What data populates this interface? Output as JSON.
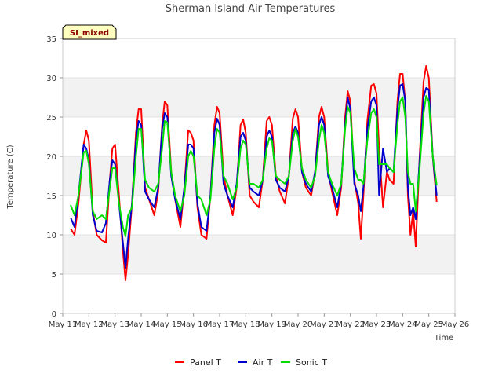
{
  "chart_data": {
    "type": "line",
    "title": "Sherman Island Air Temperatures",
    "xlabel": "Time",
    "ylabel": "Temperature (C)",
    "badge": "SI_mixed",
    "ylim": [
      0,
      35
    ],
    "yticks": [
      0,
      5,
      10,
      15,
      20,
      25,
      30,
      35
    ],
    "xlim": [
      11,
      26
    ],
    "xticks": [
      {
        "v": 11,
        "label": "May 11"
      },
      {
        "v": 12,
        "label": "May 12"
      },
      {
        "v": 13,
        "label": "May 13"
      },
      {
        "v": 14,
        "label": "May 14"
      },
      {
        "v": 15,
        "label": "May 15"
      },
      {
        "v": 16,
        "label": "May 16"
      },
      {
        "v": 17,
        "label": "May 17"
      },
      {
        "v": 18,
        "label": "May 18"
      },
      {
        "v": 19,
        "label": "May 19"
      },
      {
        "v": 20,
        "label": "May 20"
      },
      {
        "v": 21,
        "label": "May 21"
      },
      {
        "v": 22,
        "label": "May 22"
      },
      {
        "v": 23,
        "label": "May 23"
      },
      {
        "v": 24,
        "label": "May 24"
      },
      {
        "v": 25,
        "label": "May 25"
      },
      {
        "v": 26,
        "label": "May 26"
      }
    ],
    "grid": true,
    "legend_position": "bottom",
    "series": [
      {
        "name": "Panel T",
        "color": "#ff0000",
        "x": [
          11.3,
          11.45,
          11.6,
          11.8,
          11.9,
          12.0,
          12.15,
          12.3,
          12.5,
          12.65,
          12.8,
          12.9,
          13.0,
          13.15,
          13.3,
          13.4,
          13.5,
          13.65,
          13.8,
          13.9,
          14.0,
          14.15,
          14.3,
          14.5,
          14.65,
          14.8,
          14.9,
          15.0,
          15.15,
          15.3,
          15.5,
          15.65,
          15.8,
          15.9,
          16.0,
          16.15,
          16.3,
          16.5,
          16.65,
          16.8,
          16.9,
          17.0,
          17.15,
          17.3,
          17.5,
          17.65,
          17.8,
          17.9,
          18.0,
          18.15,
          18.3,
          18.5,
          18.65,
          18.8,
          18.9,
          19.0,
          19.15,
          19.3,
          19.5,
          19.65,
          19.8,
          19.9,
          20.0,
          20.15,
          20.3,
          20.5,
          20.65,
          20.8,
          20.9,
          21.0,
          21.15,
          21.3,
          21.5,
          21.65,
          21.8,
          21.9,
          22.0,
          22.15,
          22.3,
          22.4,
          22.5,
          22.65,
          22.8,
          22.9,
          23.0,
          23.1,
          23.25,
          23.4,
          23.5,
          23.65,
          23.8,
          23.9,
          24.0,
          24.1,
          24.2,
          24.3,
          24.4,
          24.5,
          24.65,
          24.8,
          24.9,
          25.0,
          25.15,
          25.3
        ],
        "y": [
          10.8,
          10.0,
          14.0,
          21.5,
          23.3,
          22.0,
          13.0,
          10.0,
          9.3,
          9.0,
          17.0,
          21.0,
          21.5,
          15.0,
          8.0,
          4.2,
          7.5,
          14.0,
          23.0,
          26.0,
          26.0,
          16.0,
          14.5,
          12.5,
          15.5,
          24.0,
          27.0,
          26.5,
          18.0,
          14.5,
          11.0,
          16.0,
          23.3,
          23.0,
          22.0,
          13.5,
          10.0,
          9.5,
          15.0,
          24.0,
          26.3,
          25.5,
          17.5,
          15.0,
          12.5,
          16.0,
          24.0,
          24.7,
          23.0,
          15.0,
          14.2,
          13.5,
          17.0,
          24.5,
          25.0,
          24.0,
          17.5,
          15.5,
          14.0,
          17.5,
          24.8,
          26.0,
          25.0,
          18.0,
          16.0,
          15.0,
          18.0,
          25.0,
          26.3,
          25.0,
          18.0,
          15.5,
          12.5,
          16.0,
          25.0,
          28.3,
          27.0,
          17.0,
          14.0,
          9.5,
          15.0,
          24.5,
          29.0,
          29.2,
          28.0,
          21.0,
          13.5,
          18.0,
          17.0,
          16.5,
          27.0,
          30.5,
          30.5,
          27.0,
          15.0,
          10.0,
          13.0,
          8.5,
          20.0,
          29.5,
          31.5,
          30.0,
          20.0,
          14.2
        ]
      },
      {
        "name": "Air T",
        "color": "#0000cc",
        "x": [
          11.3,
          11.45,
          11.6,
          11.8,
          11.9,
          12.0,
          12.15,
          12.3,
          12.5,
          12.65,
          12.8,
          12.9,
          13.0,
          13.15,
          13.3,
          13.4,
          13.5,
          13.65,
          13.8,
          13.9,
          14.0,
          14.15,
          14.3,
          14.5,
          14.65,
          14.8,
          14.9,
          15.0,
          15.15,
          15.3,
          15.5,
          15.65,
          15.8,
          15.9,
          16.0,
          16.15,
          16.3,
          16.5,
          16.65,
          16.8,
          16.9,
          17.0,
          17.15,
          17.3,
          17.5,
          17.65,
          17.8,
          17.9,
          18.0,
          18.15,
          18.3,
          18.5,
          18.65,
          18.8,
          18.9,
          19.0,
          19.15,
          19.3,
          19.5,
          19.65,
          19.8,
          19.9,
          20.0,
          20.15,
          20.3,
          20.5,
          20.65,
          20.8,
          20.9,
          21.0,
          21.15,
          21.3,
          21.5,
          21.65,
          21.8,
          21.9,
          22.0,
          22.15,
          22.3,
          22.4,
          22.5,
          22.65,
          22.8,
          22.9,
          23.0,
          23.1,
          23.25,
          23.4,
          23.5,
          23.65,
          23.8,
          23.9,
          24.0,
          24.1,
          24.2,
          24.3,
          24.4,
          24.5,
          24.65,
          24.8,
          24.9,
          25.0,
          25.15,
          25.3
        ],
        "y": [
          12.2,
          11.0,
          15.0,
          21.5,
          21.0,
          19.5,
          12.5,
          10.5,
          10.3,
          11.5,
          17.0,
          19.5,
          19.0,
          14.0,
          9.0,
          5.8,
          9.5,
          14.0,
          22.0,
          24.5,
          24.0,
          15.5,
          14.5,
          13.5,
          16.0,
          23.5,
          25.5,
          25.0,
          17.5,
          14.5,
          12.0,
          16.0,
          21.5,
          21.5,
          21.0,
          14.0,
          11.0,
          10.5,
          15.0,
          23.0,
          24.8,
          24.0,
          16.5,
          15.0,
          13.5,
          16.5,
          22.5,
          23.0,
          22.0,
          16.0,
          15.5,
          15.0,
          17.0,
          22.5,
          23.3,
          22.5,
          17.0,
          16.0,
          15.5,
          17.5,
          23.0,
          23.8,
          23.0,
          18.0,
          16.5,
          15.5,
          18.0,
          24.0,
          25.0,
          24.0,
          17.5,
          16.0,
          13.5,
          16.5,
          24.0,
          27.5,
          26.0,
          16.5,
          15.0,
          13.0,
          16.0,
          23.5,
          27.0,
          27.5,
          26.5,
          15.0,
          21.0,
          18.0,
          18.5,
          18.0,
          26.0,
          29.0,
          29.2,
          27.0,
          16.0,
          12.5,
          13.5,
          12.0,
          19.5,
          27.5,
          28.7,
          28.5,
          20.0,
          15.0
        ]
      },
      {
        "name": "Sonic T",
        "color": "#00dd00",
        "x": [
          11.3,
          11.45,
          11.6,
          11.8,
          11.9,
          12.0,
          12.15,
          12.3,
          12.5,
          12.65,
          12.8,
          12.9,
          13.0,
          13.15,
          13.3,
          13.4,
          13.5,
          13.65,
          13.8,
          13.9,
          14.0,
          14.15,
          14.3,
          14.5,
          14.65,
          14.8,
          14.9,
          15.0,
          15.15,
          15.3,
          15.5,
          15.65,
          15.8,
          15.9,
          16.0,
          16.15,
          16.3,
          16.5,
          16.65,
          16.8,
          16.9,
          17.0,
          17.15,
          17.3,
          17.5,
          17.65,
          17.8,
          17.9,
          18.0,
          18.15,
          18.3,
          18.5,
          18.65,
          18.8,
          18.9,
          19.0,
          19.15,
          19.3,
          19.5,
          19.65,
          19.8,
          19.9,
          20.0,
          20.15,
          20.3,
          20.5,
          20.65,
          20.8,
          20.9,
          21.0,
          21.15,
          21.3,
          21.5,
          21.65,
          21.8,
          21.9,
          22.0,
          22.15,
          22.3,
          22.4,
          22.5,
          22.65,
          22.8,
          22.9,
          23.0,
          23.1,
          23.25,
          23.4,
          23.5,
          23.65,
          23.8,
          23.9,
          24.0,
          24.1,
          24.2,
          24.3,
          24.4,
          24.5,
          24.65,
          24.8,
          24.9,
          25.0,
          25.15,
          25.3
        ],
        "y": [
          13.8,
          12.5,
          15.0,
          20.5,
          20.7,
          19.0,
          13.0,
          12.0,
          12.5,
          12.0,
          16.0,
          18.5,
          18.5,
          14.0,
          11.0,
          9.8,
          12.5,
          13.5,
          20.0,
          23.5,
          23.5,
          17.0,
          16.0,
          15.5,
          16.5,
          21.0,
          24.5,
          24.3,
          18.0,
          15.0,
          13.0,
          15.0,
          20.0,
          20.7,
          20.0,
          15.0,
          14.5,
          12.5,
          14.5,
          21.0,
          23.5,
          23.0,
          17.5,
          16.5,
          14.5,
          16.0,
          21.0,
          22.0,
          21.5,
          16.5,
          16.5,
          16.0,
          17.0,
          21.0,
          22.3,
          22.0,
          17.5,
          17.0,
          16.5,
          17.5,
          22.0,
          23.5,
          22.5,
          18.5,
          17.0,
          16.0,
          17.5,
          22.0,
          24.0,
          23.0,
          18.0,
          16.5,
          15.0,
          16.5,
          23.5,
          26.3,
          25.5,
          18.5,
          17.0,
          17.0,
          16.5,
          22.0,
          25.5,
          26.0,
          25.0,
          19.0,
          19.0,
          19.0,
          18.5,
          18.0,
          24.0,
          27.0,
          27.5,
          25.0,
          18.0,
          16.5,
          16.5,
          13.0,
          18.5,
          25.5,
          27.7,
          27.0,
          20.0,
          16.3
        ]
      }
    ]
  }
}
